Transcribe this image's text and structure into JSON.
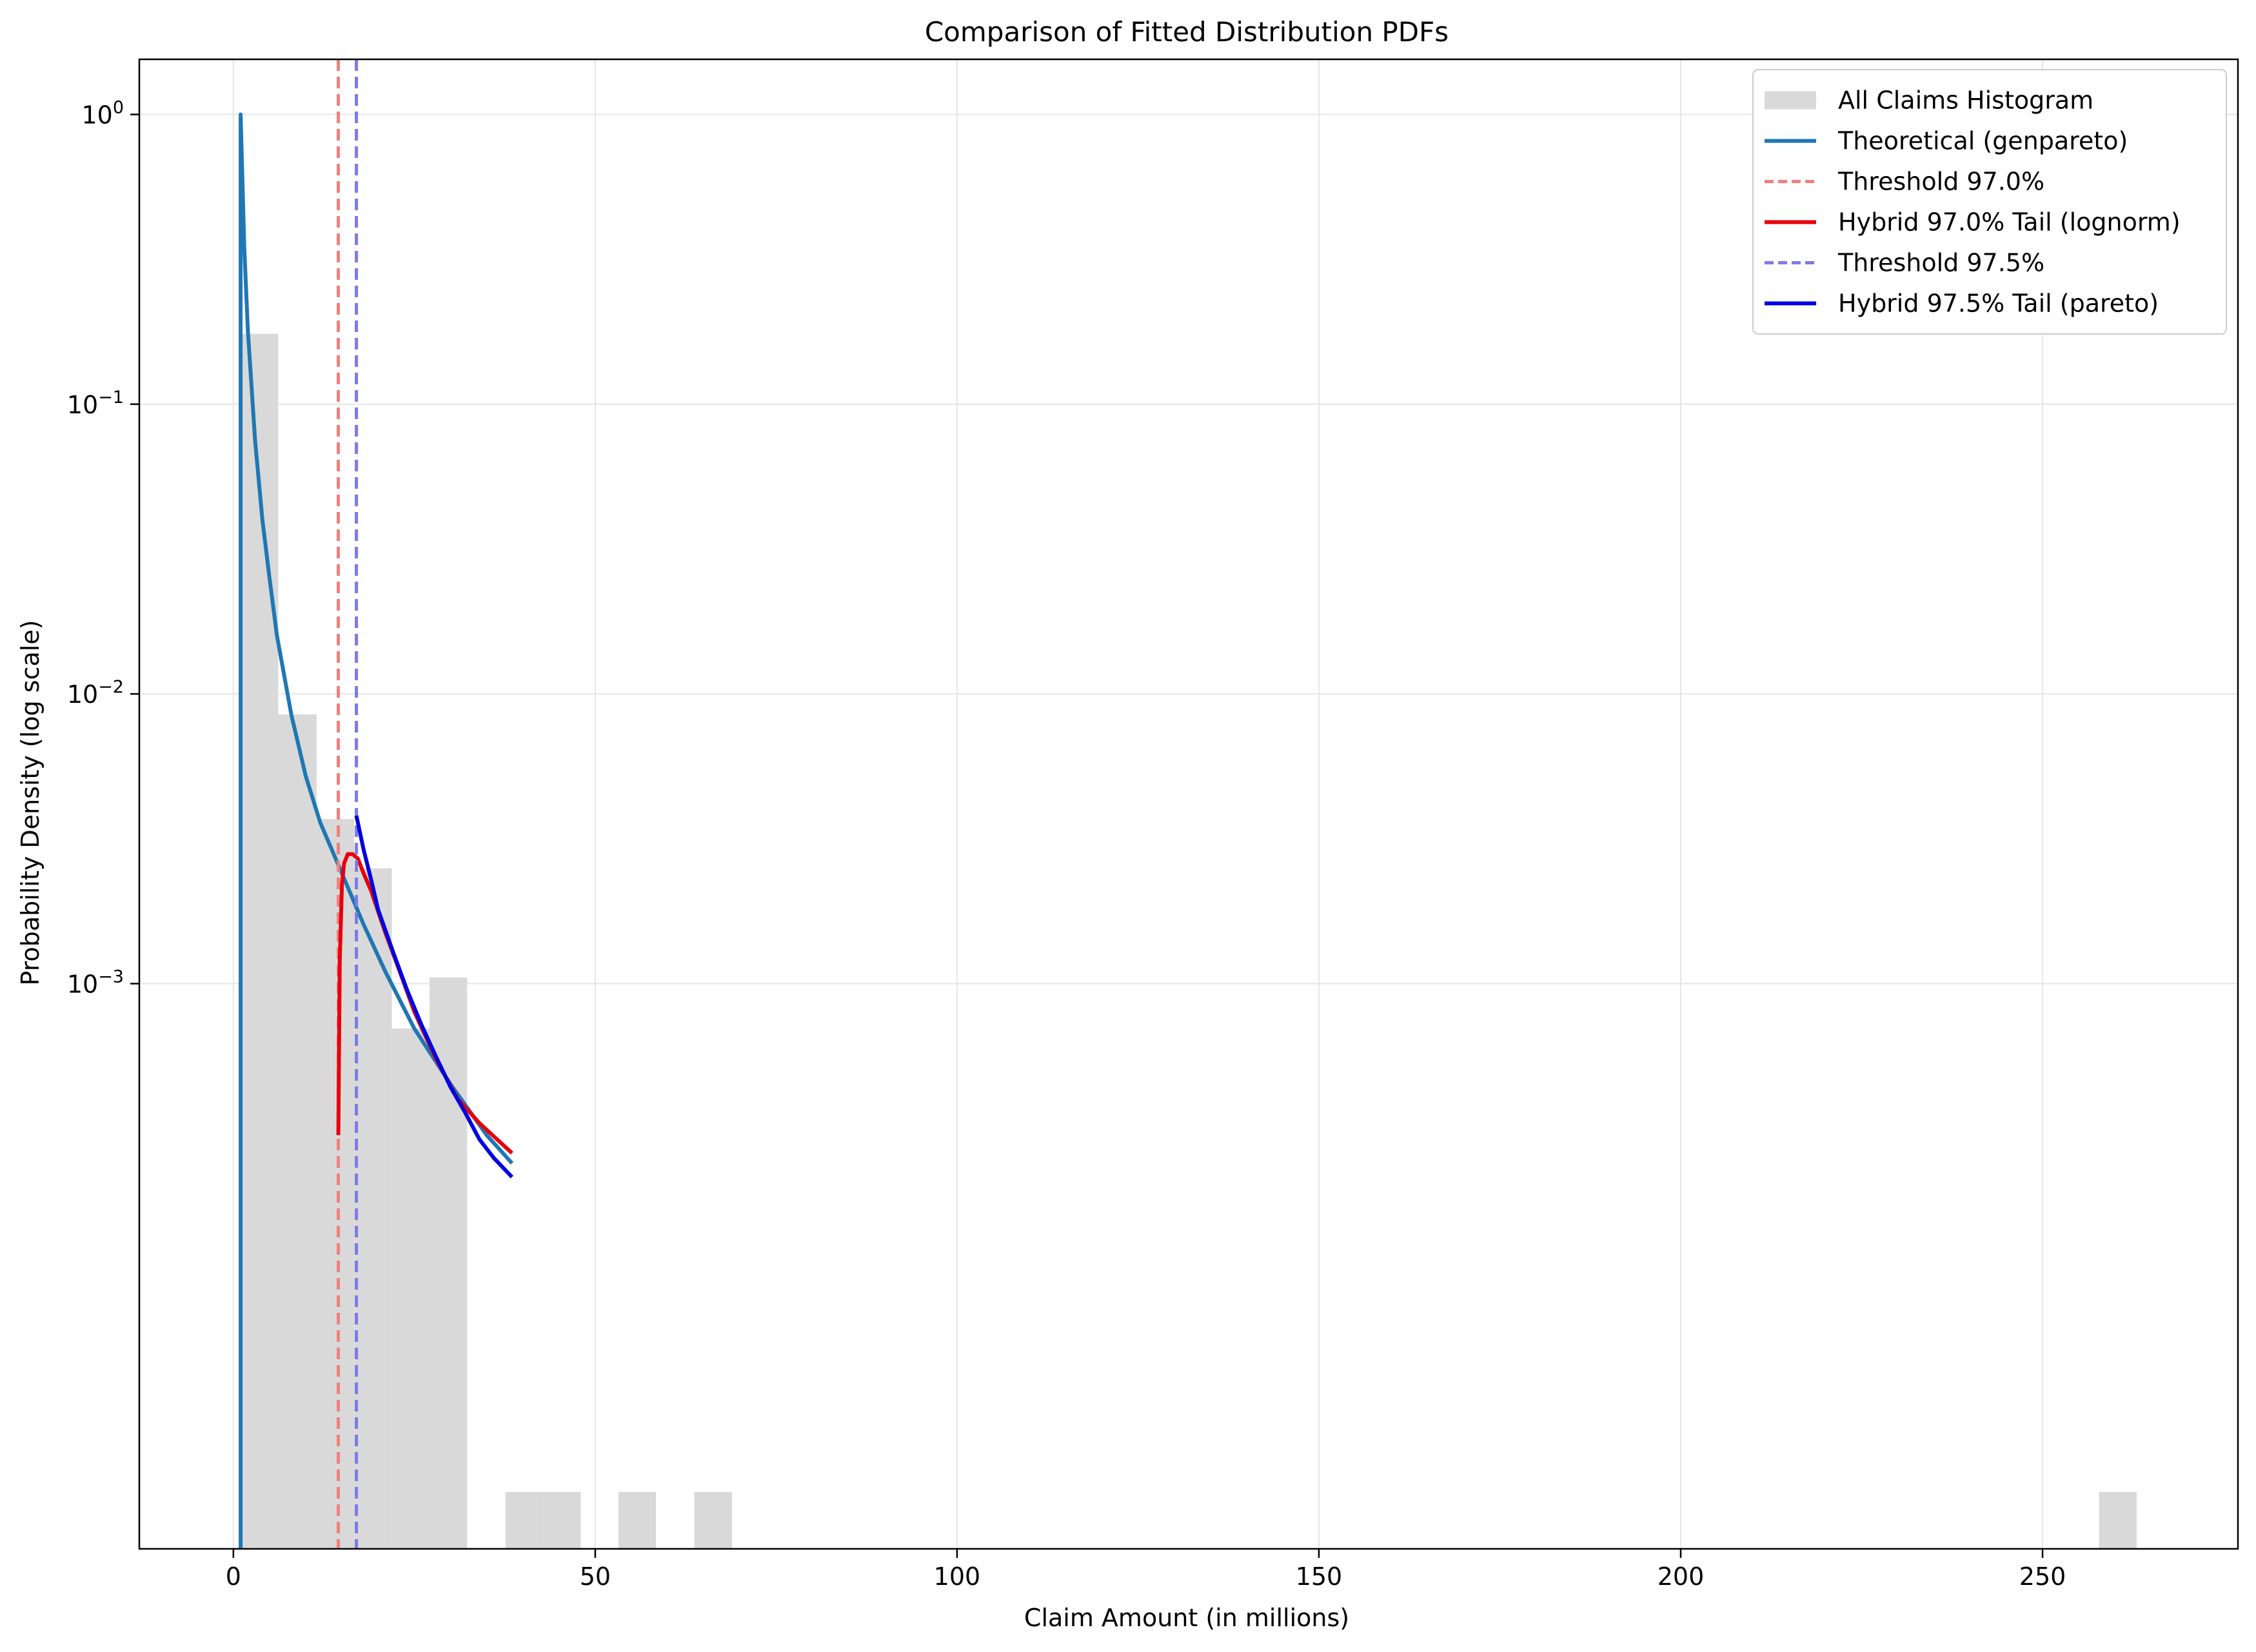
{
  "chart_data": {
    "type": "line",
    "title": "Comparison of Fitted Distribution PDFs",
    "xlabel": "Claim Amount (in millions)",
    "ylabel": "Probability Density (log scale)",
    "xlim": [
      -13,
      277
    ],
    "ylim": [
      1.12e-05,
      1.55
    ],
    "yscale": "log",
    "grid": true,
    "legend_position": "top-right",
    "x_ticks": [
      0,
      50,
      100,
      150,
      200,
      250
    ],
    "y_ticks": [
      {
        "value": 0.001,
        "base": "10",
        "exp": "−3"
      },
      {
        "value": 0.01,
        "base": "10",
        "exp": "−2"
      },
      {
        "value": 0.1,
        "base": "10",
        "exp": "−1"
      },
      {
        "value": 1,
        "base": "10",
        "exp": "0"
      }
    ],
    "histogram": {
      "name": "All Claims Histogram",
      "color": "#d9d9d9",
      "bins": [
        {
          "x0": 1.0,
          "x1": 6.2,
          "density": 0.175
        },
        {
          "x0": 6.2,
          "x1": 11.5,
          "density": 0.0085
        },
        {
          "x0": 11.5,
          "x1": 16.7,
          "density": 0.0037
        },
        {
          "x0": 16.7,
          "x1": 21.9,
          "density": 0.0025
        },
        {
          "x0": 21.9,
          "x1": 27.1,
          "density": 0.0007
        },
        {
          "x0": 27.1,
          "x1": 32.3,
          "density": 0.00105
        },
        {
          "x0": 37.6,
          "x1": 42.8,
          "density": 1.76e-05
        },
        {
          "x0": 42.8,
          "x1": 48.0,
          "density": 1.76e-05
        },
        {
          "x0": 53.2,
          "x1": 58.4,
          "density": 1.76e-05
        },
        {
          "x0": 63.7,
          "x1": 68.9,
          "density": 1.76e-05
        },
        {
          "x0": 257.8,
          "x1": 263.0,
          "density": 1.76e-05
        }
      ]
    },
    "series": [
      {
        "name": "Theoretical (genpareto)",
        "color": "#1f77b4",
        "style": "solid",
        "x": [
          1.0,
          1.0,
          1.5,
          2.0,
          3.0,
          4.0,
          5.0,
          6.0,
          8.0,
          10.0,
          12.0,
          15.0,
          18.0,
          21.0,
          25.0,
          30.0,
          35.0,
          38.5
        ],
        "y": [
          1.12e-05,
          1.0,
          0.35,
          0.18,
          0.075,
          0.04,
          0.025,
          0.016,
          0.0085,
          0.0052,
          0.0036,
          0.0024,
          0.0016,
          0.0011,
          0.0007,
          0.00045,
          0.0003,
          0.00024
        ]
      },
      {
        "name": "Threshold 97.0%",
        "color": "#f08080",
        "style": "dashed",
        "vline": 14.5
      },
      {
        "name": "Hybrid 97.0% Tail (lognorm)",
        "color": "#e8000b",
        "style": "solid",
        "x": [
          14.5,
          14.7,
          15.0,
          15.3,
          15.8,
          16.5,
          17.2,
          18.0,
          19.0,
          21.0,
          23.0,
          25.0,
          28.0,
          31.0,
          34.0,
          38.5
        ],
        "y": [
          0.0003,
          0.0012,
          0.0022,
          0.0026,
          0.0028,
          0.0028,
          0.0027,
          0.0024,
          0.0021,
          0.0015,
          0.0011,
          0.0008,
          0.00055,
          0.0004,
          0.00033,
          0.00026
        ]
      },
      {
        "name": "Threshold 97.5%",
        "color": "#7b7be8",
        "style": "dashed",
        "vline": 17.0
      },
      {
        "name": "Hybrid 97.5% Tail (pareto)",
        "color": "#0000e0",
        "style": "solid",
        "x": [
          17.0,
          18.0,
          19.0,
          20.0,
          22.0,
          24.0,
          26.0,
          28.0,
          30.0,
          32.0,
          34.0,
          36.0,
          38.5
        ],
        "y": [
          0.0038,
          0.0029,
          0.0023,
          0.0018,
          0.0013,
          0.00095,
          0.00072,
          0.00056,
          0.00044,
          0.00036,
          0.00029,
          0.00025,
          0.000215
        ]
      }
    ]
  }
}
